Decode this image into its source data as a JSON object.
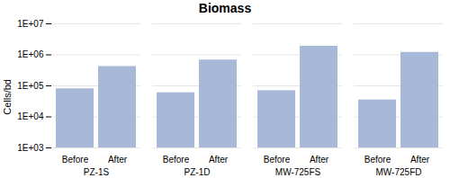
{
  "chart_data": {
    "type": "bar",
    "title": "Biomass",
    "ylabel": "Cells/bd",
    "categories": [
      "PZ-1S",
      "PZ-1D",
      "MW-725FS",
      "MW-725FD"
    ],
    "series": [
      {
        "name": "Before",
        "color": "#a8b8d8",
        "values": [
          80000,
          60000,
          70000,
          35000
        ]
      },
      {
        "name": "After",
        "color": "#a8b8d8",
        "values": [
          420000,
          680000,
          1900000,
          1200000
        ]
      }
    ],
    "log": "y",
    "ylim": [
      1000,
      10000000
    ],
    "yticks": [
      {
        "value": 1000,
        "label": "1E+03"
      },
      {
        "value": 10000,
        "label": "1E+04"
      },
      {
        "value": 100000,
        "label": "1E+05"
      },
      {
        "value": 1000000,
        "label": "1E+06"
      },
      {
        "value": 10000000,
        "label": "1E+07"
      }
    ],
    "grid": true
  }
}
